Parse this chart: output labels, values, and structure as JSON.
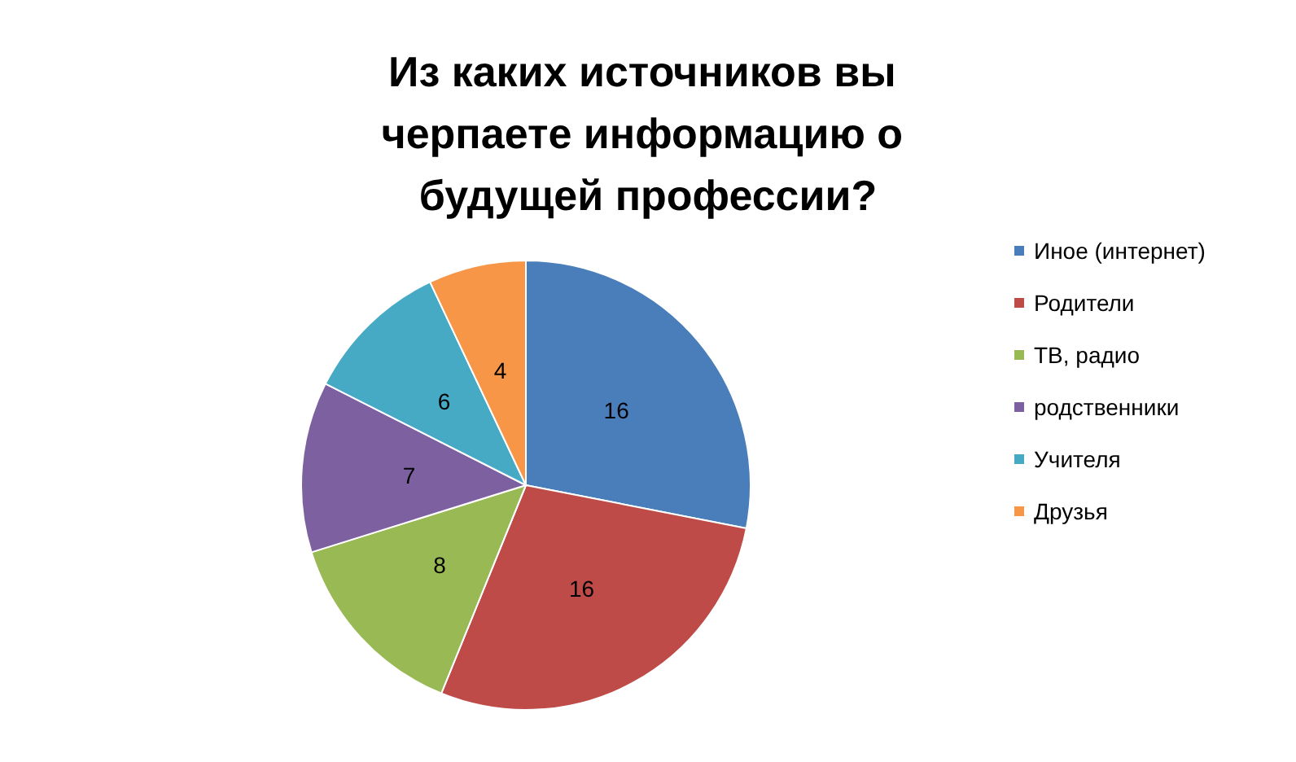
{
  "chart_data": {
    "type": "pie",
    "title": "Из каких источников вы черпаете информацию о будущей профессии?",
    "categories": [
      "Иное (интернет)",
      "Родители",
      "ТВ, радио",
      "родственники",
      "Учителя",
      "Друзья"
    ],
    "values": [
      16,
      16,
      8,
      7,
      6,
      4
    ],
    "colors": [
      "#4a7ebb",
      "#be4b48",
      "#98b954",
      "#7d60a0",
      "#46aac5",
      "#f79646"
    ],
    "data_labels": true,
    "legend": "right"
  }
}
